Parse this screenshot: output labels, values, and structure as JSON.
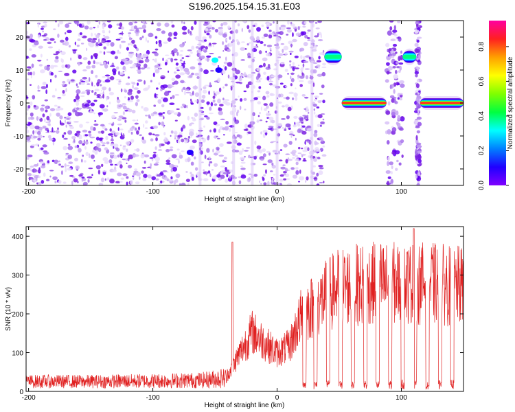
{
  "title": "S196.2025.154.15.31.E03",
  "chart_data": [
    {
      "type": "heatmap",
      "xlabel": "Height of straight line (km)",
      "ylabel": "Frequency (Hz)",
      "xlim": [
        -202,
        150
      ],
      "ylim": [
        -25,
        25
      ],
      "xticks": [
        -200,
        -100,
        0,
        100
      ],
      "yticks": [
        -20,
        -10,
        0,
        10,
        20
      ],
      "colorbar": {
        "label": "Normalized spectral amplitude",
        "range": [
          0.0,
          0.95
        ],
        "ticks": [
          "0.0",
          "0.2",
          "0.4",
          "0.6",
          "0.8"
        ],
        "colormap": [
          "#7f00ff",
          "#2000ff",
          "#0080ff",
          "#00ffff",
          "#00ff40",
          "#80ff00",
          "#ffff00",
          "#ffa000",
          "#ff2020",
          "#ff00a0"
        ]
      },
      "noise_region": {
        "x": [
          -202,
          38
        ],
        "y": [
          -25,
          25
        ],
        "color": "#7a1fe0"
      },
      "signal_bands": [
        {
          "x": [
            38,
            52
          ],
          "y": 14,
          "amplitude": 0.55
        },
        {
          "x": [
            52,
            88
          ],
          "y": 0,
          "amplitude": 0.9
        },
        {
          "x": [
            101,
            112
          ],
          "y": 14,
          "amplitude": 0.55
        },
        {
          "x": [
            115,
            150
          ],
          "y": 0,
          "amplitude": 0.9
        }
      ],
      "grid": false
    },
    {
      "type": "line",
      "xlabel": "Height of straight line (km)",
      "ylabel": "SNR (10 * v/v)",
      "xlim": [
        -202,
        150
      ],
      "ylim": [
        0,
        425
      ],
      "xticks": [
        -200,
        -100,
        0,
        100
      ],
      "yticks": [
        0,
        100,
        200,
        300,
        400
      ],
      "color": "#e02020",
      "envelope": [
        {
          "x": -202,
          "y": 25
        },
        {
          "x": -150,
          "y": 25
        },
        {
          "x": -100,
          "y": 28
        },
        {
          "x": -60,
          "y": 32
        },
        {
          "x": -40,
          "y": 45
        },
        {
          "x": -30,
          "y": 110
        },
        {
          "x": -20,
          "y": 170
        },
        {
          "x": -10,
          "y": 140
        },
        {
          "x": 0,
          "y": 110
        },
        {
          "x": 10,
          "y": 130
        },
        {
          "x": 20,
          "y": 220
        },
        {
          "x": 35,
          "y": 260
        },
        {
          "x": 50,
          "y": 300
        },
        {
          "x": 80,
          "y": 310
        },
        {
          "x": 120,
          "y": 310
        },
        {
          "x": 150,
          "y": 300
        }
      ],
      "peaks": [
        {
          "x": -36,
          "y": 385
        },
        {
          "x": 110,
          "y": 420
        }
      ],
      "dropouts": [
        22,
        31,
        41,
        51,
        61,
        71,
        81,
        91,
        101,
        111,
        121,
        131,
        141
      ],
      "grid": false
    }
  ]
}
